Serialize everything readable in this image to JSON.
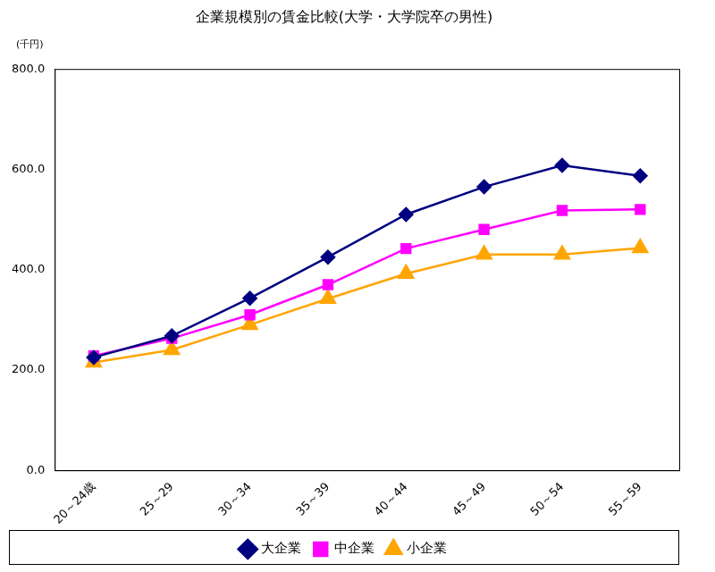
{
  "chart_data": {
    "type": "line",
    "title": "企業規模別の賃金比較(大学・大学院卒の男性)",
    "ylabel": "(千円)",
    "categories": [
      "20～24歳",
      "25～29",
      "30～34",
      "35～39",
      "40～44",
      "45～49",
      "50～54",
      "55～59"
    ],
    "series": [
      {
        "name": "大企業",
        "color": "#000080",
        "marker": "diamond",
        "values": [
          225,
          268,
          343,
          425,
          510,
          565,
          608,
          587
        ]
      },
      {
        "name": "中企業",
        "color": "#ff00ff",
        "marker": "square",
        "values": [
          228,
          263,
          310,
          370,
          442,
          480,
          518,
          520
        ]
      },
      {
        "name": "小企業",
        "color": "#ffa500",
        "marker": "triangle",
        "values": [
          215,
          240,
          290,
          342,
          392,
          430,
          430,
          443
        ]
      }
    ],
    "ylim": [
      0,
      800
    ],
    "yticks": [
      {
        "value": 0,
        "label": "0.0"
      },
      {
        "value": 200,
        "label": "200.0"
      },
      {
        "value": 400,
        "label": "400.0"
      },
      {
        "value": 600,
        "label": "600.0"
      },
      {
        "value": 800,
        "label": "800.0"
      }
    ],
    "grid": false,
    "legend": "bottom"
  }
}
